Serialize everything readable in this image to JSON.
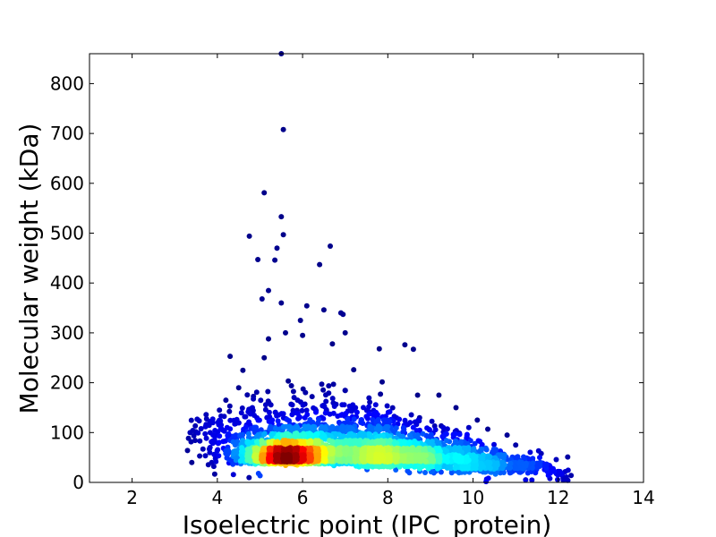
{
  "chart_data": {
    "type": "scatter",
    "title": "",
    "xlabel": "Isoelectric point (IPC_protein)",
    "ylabel": "Molecular weight (kDa)",
    "xlim": [
      1,
      14
    ],
    "ylim": [
      0,
      860
    ],
    "xticks": [
      2,
      4,
      6,
      8,
      10,
      12,
      14
    ],
    "yticks": [
      0,
      100,
      200,
      300,
      400,
      500,
      600,
      700,
      800
    ],
    "grid": false,
    "legend": "none",
    "colormap": "jet",
    "color_encodes": "point density",
    "density_clusters": [
      {
        "x": 5.6,
        "y": 43,
        "sx": 0.55,
        "sy": 15,
        "n": 1400
      },
      {
        "x": 7.2,
        "y": 45,
        "sx": 1.3,
        "sy": 22,
        "n": 1500
      },
      {
        "x": 8.5,
        "y": 38,
        "sx": 0.9,
        "sy": 18,
        "n": 700
      },
      {
        "x": 10.5,
        "y": 25,
        "sx": 0.9,
        "sy": 15,
        "n": 450
      },
      {
        "x": 6.2,
        "y": 80,
        "sx": 1.4,
        "sy": 40,
        "n": 600
      }
    ],
    "outliers": [
      {
        "x": 5.5,
        "y": 860
      },
      {
        "x": 5.55,
        "y": 708
      },
      {
        "x": 5.1,
        "y": 581
      },
      {
        "x": 5.5,
        "y": 533
      },
      {
        "x": 5.55,
        "y": 497
      },
      {
        "x": 4.75,
        "y": 494
      },
      {
        "x": 6.65,
        "y": 474
      },
      {
        "x": 5.4,
        "y": 470
      },
      {
        "x": 4.95,
        "y": 447
      },
      {
        "x": 5.35,
        "y": 446
      },
      {
        "x": 6.4,
        "y": 437
      },
      {
        "x": 5.2,
        "y": 385
      },
      {
        "x": 5.05,
        "y": 368
      },
      {
        "x": 5.5,
        "y": 360
      },
      {
        "x": 6.1,
        "y": 354
      },
      {
        "x": 6.5,
        "y": 346
      },
      {
        "x": 6.9,
        "y": 340
      },
      {
        "x": 6.95,
        "y": 337
      },
      {
        "x": 5.95,
        "y": 325
      },
      {
        "x": 7.0,
        "y": 300
      },
      {
        "x": 5.6,
        "y": 300
      },
      {
        "x": 6.0,
        "y": 295
      },
      {
        "x": 5.2,
        "y": 288
      },
      {
        "x": 6.7,
        "y": 278
      },
      {
        "x": 8.4,
        "y": 276
      },
      {
        "x": 7.8,
        "y": 268
      },
      {
        "x": 8.6,
        "y": 267
      },
      {
        "x": 4.3,
        "y": 253
      },
      {
        "x": 5.1,
        "y": 250
      },
      {
        "x": 7.2,
        "y": 226
      },
      {
        "x": 8.7,
        "y": 175
      },
      {
        "x": 9.2,
        "y": 175
      },
      {
        "x": 10.1,
        "y": 125
      },
      {
        "x": 10.8,
        "y": 95
      },
      {
        "x": 11.6,
        "y": 58
      },
      {
        "x": 12.3,
        "y": 14
      },
      {
        "x": 3.3,
        "y": 64
      },
      {
        "x": 3.4,
        "y": 40
      },
      {
        "x": 3.9,
        "y": 95
      },
      {
        "x": 4.05,
        "y": 145
      },
      {
        "x": 4.2,
        "y": 165
      },
      {
        "x": 4.5,
        "y": 190
      },
      {
        "x": 4.6,
        "y": 225
      },
      {
        "x": 9.6,
        "y": 150
      },
      {
        "x": 9.9,
        "y": 110
      },
      {
        "x": 11.0,
        "y": 75
      },
      {
        "x": 11.4,
        "y": 48
      },
      {
        "x": 12.0,
        "y": 22
      }
    ]
  }
}
